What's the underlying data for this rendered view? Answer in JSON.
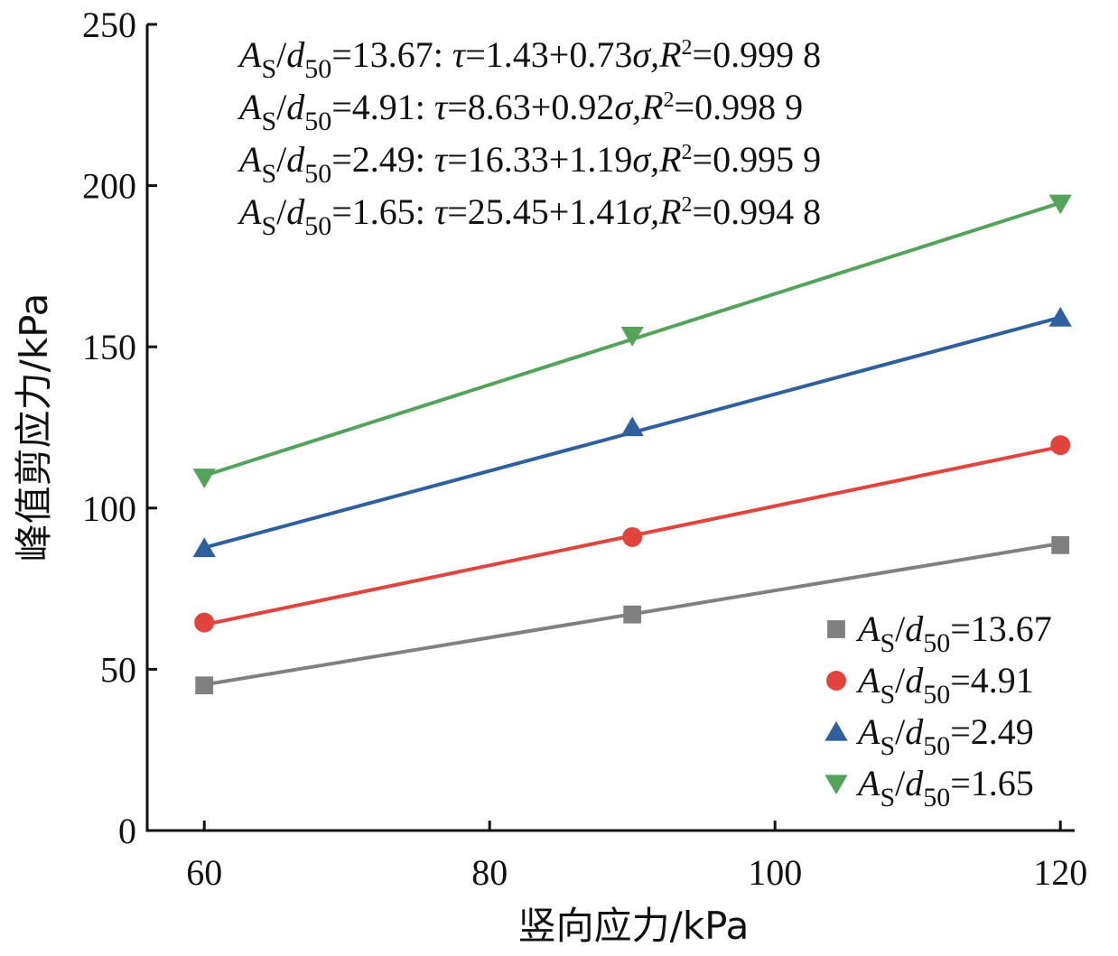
{
  "chart_data": {
    "type": "line",
    "xlabel": "竖向应力/kPa",
    "ylabel": "峰值剪应力/kPa",
    "xlim": [
      56,
      121
    ],
    "ylim": [
      0,
      250
    ],
    "x_ticks": [
      "60",
      "80",
      "100",
      "120"
    ],
    "y_ticks": [
      "0",
      "50",
      "100",
      "150",
      "200",
      "250"
    ],
    "x": [
      60,
      90,
      120
    ],
    "grid": false,
    "legend_position": "bottom-right",
    "series": [
      {
        "name": "A_S/d_50=13.67",
        "legend_label": {
          "a": "A",
          "s": "S",
          "slash": "/",
          "d": "d",
          "sub": "50",
          "value": "=13.67"
        },
        "values": [
          45,
          67,
          88.5
        ],
        "fit": {
          "intercept": 1.43,
          "slope": 0.73
        },
        "equation": {
          "prefix": "=13.67: ",
          "tau": "τ",
          "formula": "=1.43+0.73",
          "sigma": "σ",
          "r": ",R",
          "sq": "2",
          "r2": "=0.999 8"
        },
        "color": "#808080",
        "marker": "square"
      },
      {
        "name": "A_S/d_50=4.91",
        "legend_label": {
          "a": "A",
          "s": "S",
          "slash": "/",
          "d": "d",
          "sub": "50",
          "value": "=4.91"
        },
        "values": [
          64.5,
          91,
          119.5
        ],
        "fit": {
          "intercept": 8.63,
          "slope": 0.92
        },
        "equation": {
          "prefix": "=4.91: ",
          "tau": "τ",
          "formula": "=8.63+0.92",
          "sigma": "σ",
          "r": ",R",
          "sq": "2",
          "r2": "=0.998 9"
        },
        "color": "#e0443c",
        "marker": "circle"
      },
      {
        "name": "A_S/d_50=2.49",
        "legend_label": {
          "a": "A",
          "s": "S",
          "slash": "/",
          "d": "d",
          "sub": "50",
          "value": "=2.49"
        },
        "values": [
          87.5,
          125,
          159
        ],
        "fit": {
          "intercept": 16.33,
          "slope": 1.19
        },
        "equation": {
          "prefix": "=2.49: ",
          "tau": "τ",
          "formula": "=16.33+1.19",
          "sigma": "σ",
          "r": ",R",
          "sq": "2",
          "r2": "=0.995 9"
        },
        "color": "#2e5f9f",
        "marker": "triangle-up"
      },
      {
        "name": "A_S/d_50=1.65",
        "legend_label": {
          "a": "A",
          "s": "S",
          "slash": "/",
          "d": "d",
          "sub": "50",
          "value": "=1.65"
        },
        "values": [
          109.5,
          153.5,
          194.5
        ],
        "fit": {
          "intercept": 25.45,
          "slope": 1.41
        },
        "equation": {
          "prefix": "=1.65: ",
          "tau": "τ",
          "formula": "=25.45+1.41",
          "sigma": "σ",
          "r": ",R",
          "sq": "2",
          "r2": "=0.994 8"
        },
        "color": "#54a35a",
        "marker": "triangle-down"
      }
    ]
  }
}
